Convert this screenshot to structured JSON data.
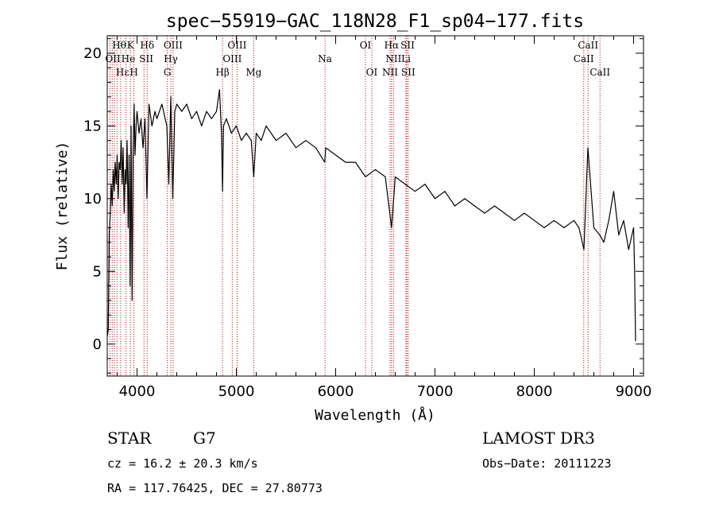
{
  "chart_data": {
    "type": "line",
    "title": "spec−55919−GAC_118N28_F1_sp04−177.fits",
    "xlabel": "Wavelength (Å)",
    "ylabel": "Flux (relative)",
    "xlim": [
      3700,
      9100
    ],
    "ylim": [
      -2.2,
      21.2
    ],
    "xticks": [
      4000,
      5000,
      6000,
      7000,
      8000,
      9000
    ],
    "yticks": [
      0,
      5,
      10,
      15,
      20
    ],
    "series": [
      {
        "name": "flux",
        "x": [
          3700,
          3710,
          3720,
          3730,
          3740,
          3750,
          3760,
          3770,
          3780,
          3790,
          3800,
          3810,
          3820,
          3830,
          3840,
          3850,
          3860,
          3870,
          3880,
          3890,
          3900,
          3910,
          3920,
          3930,
          3940,
          3950,
          3960,
          3970,
          3980,
          3990,
          4000,
          4020,
          4040,
          4060,
          4080,
          4100,
          4120,
          4150,
          4180,
          4200,
          4250,
          4300,
          4320,
          4340,
          4360,
          4380,
          4400,
          4450,
          4500,
          4550,
          4600,
          4650,
          4700,
          4750,
          4800,
          4830,
          4850,
          4861,
          4870,
          4900,
          4950,
          5000,
          5050,
          5100,
          5150,
          5175,
          5200,
          5250,
          5300,
          5400,
          5500,
          5600,
          5700,
          5800,
          5890,
          5900,
          6000,
          6100,
          6200,
          6300,
          6400,
          6500,
          6563,
          6600,
          6700,
          6800,
          6900,
          7000,
          7100,
          7200,
          7300,
          7400,
          7500,
          7600,
          7700,
          7800,
          7900,
          8000,
          8100,
          8200,
          8300,
          8400,
          8450,
          8500,
          8540,
          8600,
          8660,
          8700,
          8750,
          8800,
          8850,
          8900,
          8950,
          9000,
          9010,
          9020
        ],
        "values": [
          0.5,
          1.0,
          7.5,
          9.0,
          11.0,
          9.5,
          12.0,
          10.5,
          12.5,
          11.0,
          13.0,
          10.0,
          12.5,
          12.0,
          14.0,
          11.0,
          13.5,
          9.0,
          12.0,
          11.0,
          14.0,
          8.0,
          13.0,
          4.0,
          15.0,
          3.0,
          13.0,
          16.5,
          13.0,
          15.0,
          16.0,
          14.5,
          15.5,
          13.5,
          15.5,
          10.0,
          16.5,
          15.0,
          16.0,
          15.5,
          16.5,
          15.0,
          11.0,
          17.0,
          10.0,
          16.0,
          16.5,
          16.0,
          16.5,
          15.5,
          16.0,
          15.0,
          16.0,
          15.5,
          16.0,
          17.5,
          14.5,
          10.5,
          15.0,
          15.5,
          14.5,
          15.0,
          14.0,
          14.5,
          14.0,
          11.5,
          14.5,
          14.0,
          15.0,
          14.0,
          14.5,
          13.5,
          14.0,
          13.5,
          12.5,
          13.5,
          13.0,
          12.5,
          12.5,
          11.5,
          12.0,
          11.5,
          8.0,
          11.5,
          11.0,
          10.5,
          11.0,
          10.0,
          10.5,
          9.5,
          10.0,
          9.5,
          9.0,
          9.5,
          9.0,
          8.5,
          9.0,
          8.5,
          8.0,
          8.5,
          8.0,
          8.5,
          8.0,
          6.5,
          13.5,
          8.0,
          7.5,
          7.0,
          8.5,
          10.5,
          7.5,
          8.5,
          6.5,
          8.0,
          5.0,
          0.2
        ]
      }
    ],
    "annotations": [
      {
        "label": "Hθ",
        "x": 3798,
        "row": 1,
        "side": "left"
      },
      {
        "label": "K",
        "x": 3934,
        "row": 1,
        "side": "center"
      },
      {
        "label": "Hδ",
        "x": 4102,
        "row": 1,
        "side": "center"
      },
      {
        "label": "OIII",
        "x": 4363,
        "row": 1,
        "side": "center"
      },
      {
        "label": "OIII",
        "x": 5007,
        "row": 1,
        "side": "center"
      },
      {
        "label": "OI",
        "x": 6300,
        "row": 1,
        "side": "center"
      },
      {
        "label": "Hα",
        "x": 6563,
        "row": 1,
        "side": "center"
      },
      {
        "label": "SII",
        "x": 6724,
        "row": 1,
        "side": "center"
      },
      {
        "label": "CaII",
        "x": 8542,
        "row": 1,
        "side": "center"
      },
      {
        "label": "OII",
        "x": 3727,
        "row": 2,
        "side": "left"
      },
      {
        "label": "He",
        "x": 3889,
        "row": 2,
        "side": "left"
      },
      {
        "label": "SII",
        "x": 4070,
        "row": 2,
        "side": "left"
      },
      {
        "label": "Hγ",
        "x": 4340,
        "row": 2,
        "side": "center"
      },
      {
        "label": "OIII",
        "x": 4959,
        "row": 2,
        "side": "center"
      },
      {
        "label": "Na",
        "x": 5893,
        "row": 2,
        "side": "center"
      },
      {
        "label": "NII",
        "x": 6583,
        "row": 2,
        "side": "center"
      },
      {
        "label": "Li",
        "x": 6708,
        "row": 2,
        "side": "center"
      },
      {
        "label": "CaII",
        "x": 8498,
        "row": 2,
        "side": "center"
      },
      {
        "label": "Hε",
        "x": 3835,
        "row": 3,
        "side": "left"
      },
      {
        "label": "H",
        "x": 3969,
        "row": 3,
        "side": "center"
      },
      {
        "label": "G",
        "x": 4305,
        "row": 3,
        "side": "center"
      },
      {
        "label": "Hβ",
        "x": 4861,
        "row": 3,
        "side": "center"
      },
      {
        "label": "Mg",
        "x": 5175,
        "row": 3,
        "side": "center"
      },
      {
        "label": "OI",
        "x": 6364,
        "row": 3,
        "side": "center"
      },
      {
        "label": "NII",
        "x": 6548,
        "row": 3,
        "side": "center"
      },
      {
        "label": "SII",
        "x": 6731,
        "row": 3,
        "side": "center"
      },
      {
        "label": "CaII",
        "x": 8662,
        "row": 3,
        "side": "center"
      }
    ],
    "line_marks": [
      3727,
      3750,
      3771,
      3798,
      3835,
      3889,
      3934,
      3969,
      4070,
      4102,
      4305,
      4340,
      4363,
      4861,
      4959,
      5007,
      5175,
      5893,
      6300,
      6364,
      6548,
      6563,
      6583,
      6708,
      6716,
      6731,
      8498,
      8542,
      8662
    ],
    "line_color": "#cc0000"
  },
  "info": {
    "object_class": "STAR",
    "subclass": "G7",
    "survey": "LAMOST DR3",
    "cz": "cz = 16.2 ± 20.3 km/s",
    "obs_date": "Obs−Date: 20111223",
    "coords": "RA = 117.76425, DEC =  27.80773"
  }
}
